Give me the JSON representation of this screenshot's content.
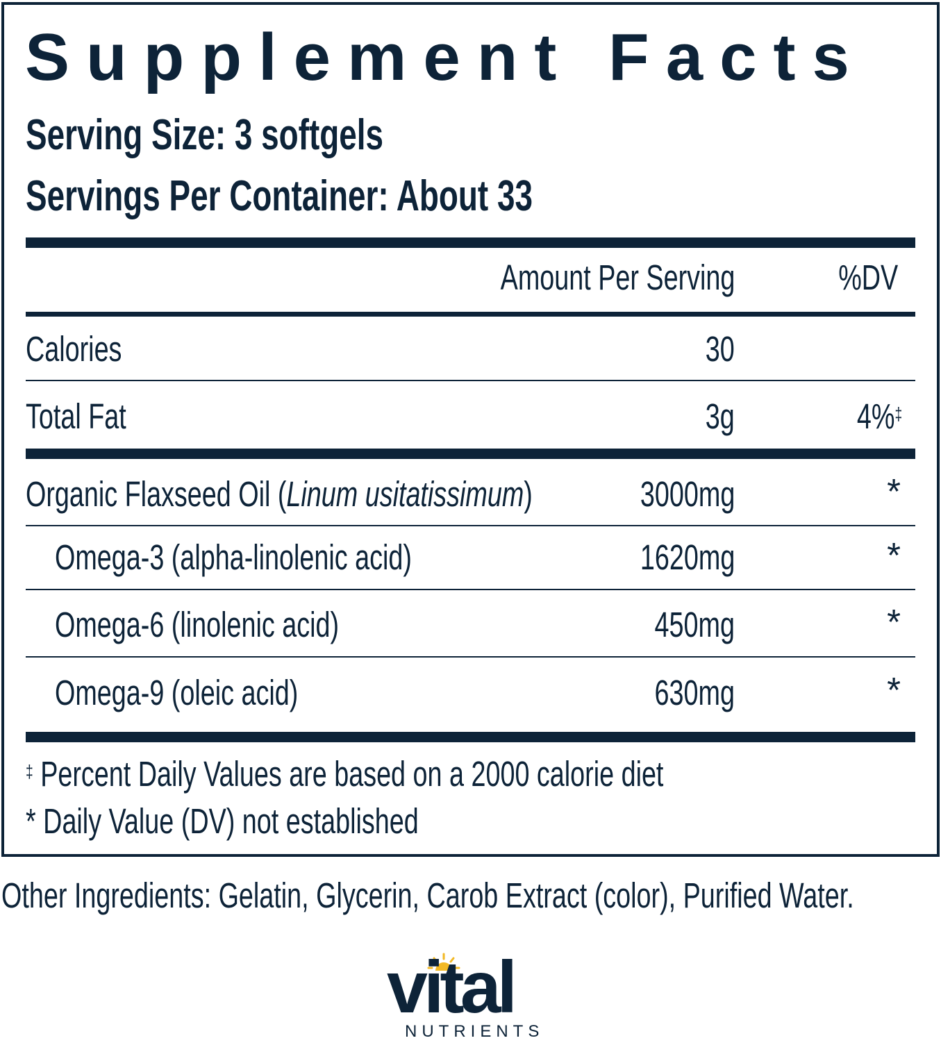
{
  "title": "Supplement Facts",
  "serving_size": "Serving Size: 3 softgels",
  "servings_per_container": "Servings Per Container: About 33",
  "columns": {
    "amount": "Amount Per Serving",
    "dv": "%DV"
  },
  "rows": [
    {
      "name": "Calories",
      "amount": "30",
      "dv": ""
    },
    {
      "name": "Total Fat",
      "amount": "3g",
      "dv": "4%",
      "dv_mark": "‡"
    },
    {
      "name": "Organic Flaxseed Oil (",
      "name_italic": "Linum usitatissimum",
      "name_end": ")",
      "amount": "3000mg",
      "dv": "*"
    },
    {
      "name": "Omega-3 (alpha-linolenic acid)",
      "amount": "1620mg",
      "dv": "*"
    },
    {
      "name": "Omega-6 (linolenic acid)",
      "amount": "450mg",
      "dv": "*"
    },
    {
      "name": "Omega-9 (oleic acid)",
      "amount": "630mg",
      "dv": "*"
    }
  ],
  "footnotes": [
    {
      "mark": "‡",
      "text": "Percent Daily Values are based on a 2000 calorie diet"
    },
    {
      "mark": "*",
      "text": "Daily Value (DV) not established"
    }
  ],
  "other_ingredients": "Other Ingredients: Gelatin, Glycerin, Carob Extract (color), Purified Water.",
  "brand": {
    "name": "vital",
    "sub": "NUTRIENTS",
    "color": "#0d2338",
    "sun_color": "#f2b824"
  }
}
